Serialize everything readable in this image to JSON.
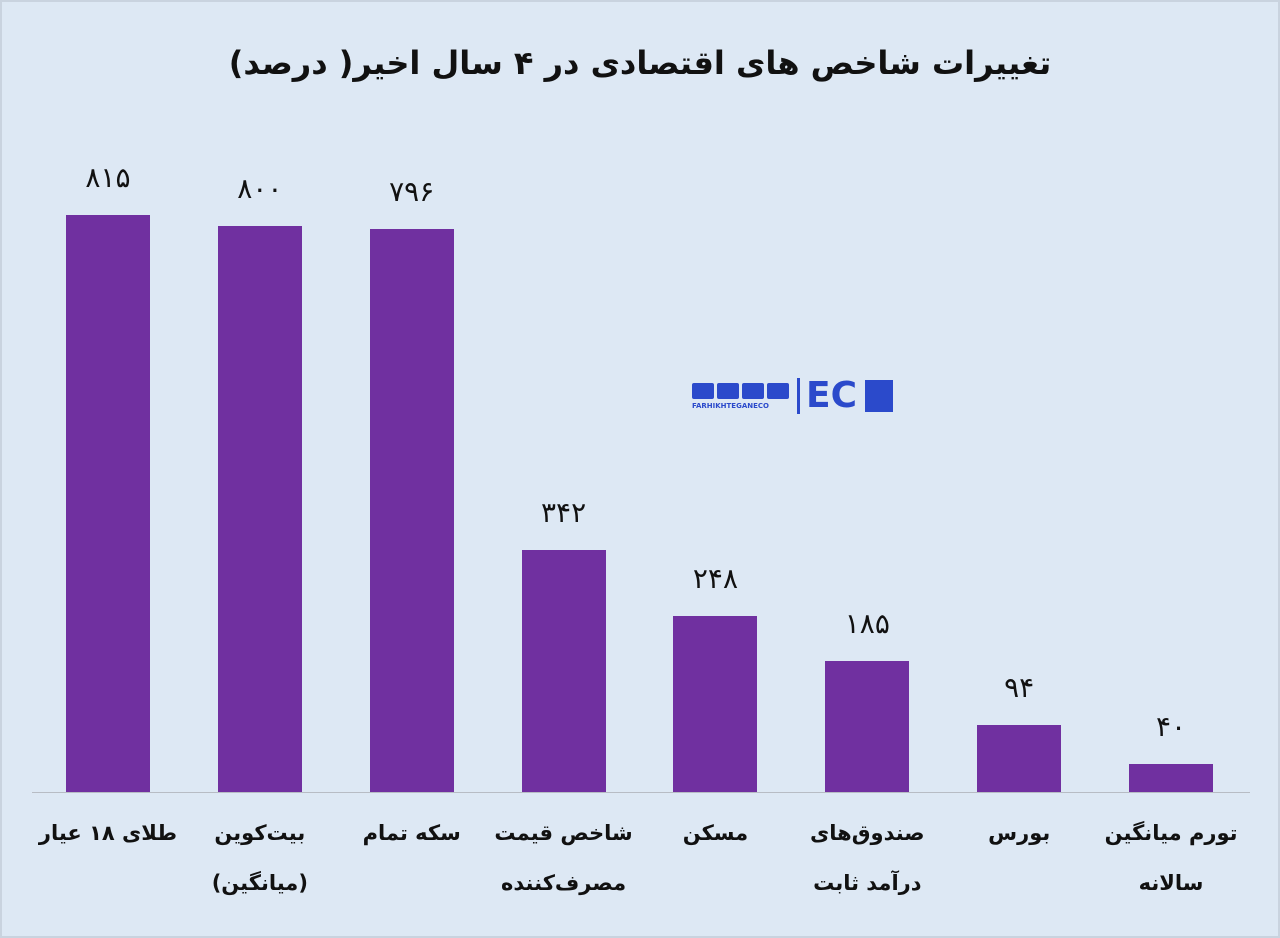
{
  "chart_data": {
    "type": "bar",
    "title": "تغییرات شاخص های اقتصادی در ۴ سال اخیر( درصد)",
    "categories": [
      "طلای ۱۸ عیار",
      "بیت‌کوین\n(میانگین)",
      "سکه تمام",
      "شاخص قیمت\nمصرف‌کننده",
      "مسکن",
      "صندوق‌های\nدرآمد ثابت",
      "بورس",
      "تورم میانگین\nسالانه"
    ],
    "values": [
      815,
      800,
      796,
      342,
      248,
      185,
      94,
      40
    ],
    "value_labels": [
      "۸۱۵",
      "۸۰۰",
      "۷۹۶",
      "۳۴۲",
      "۲۴۸",
      "۱۸۵",
      "۹۴",
      "۴۰"
    ],
    "color": "#7030a0",
    "ylim": [
      0,
      900
    ]
  },
  "watermark": {
    "brand": "EC",
    "handle": "FARHIKHTEGANECO"
  }
}
